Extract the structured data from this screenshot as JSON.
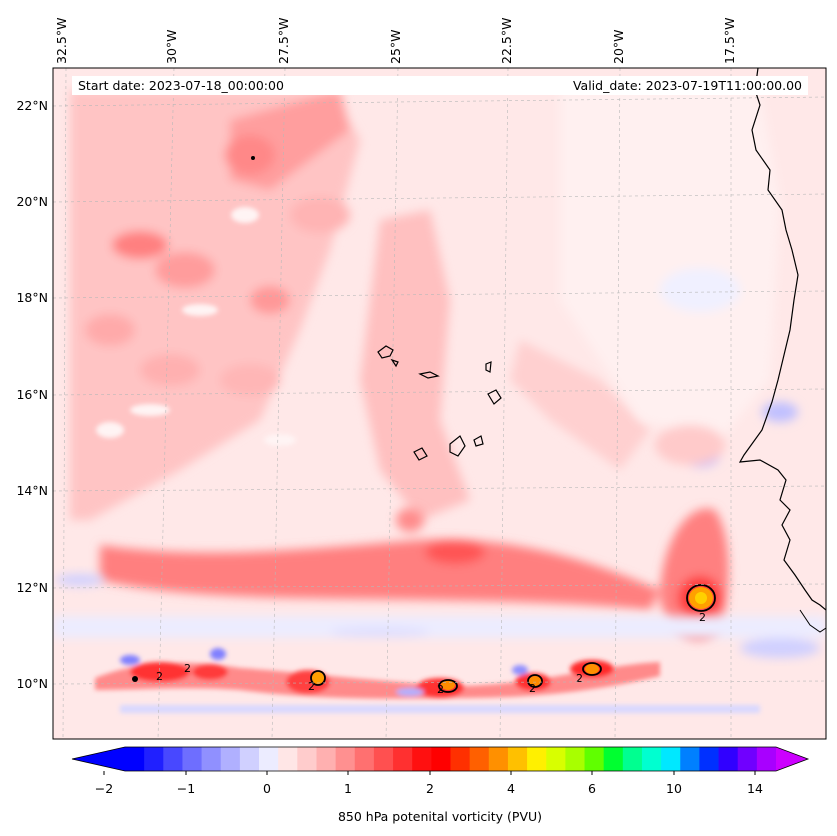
{
  "header": {
    "start_date": "Start date: 2023-07-18_00:00:00",
    "valid_date": "Valid_date: 2023-07-19T11:00:00.00"
  },
  "axes": {
    "longitude_labels": [
      "32.5°W",
      "30°W",
      "27.5°W",
      "25°W",
      "22.5°W",
      "20°W",
      "17.5°W"
    ],
    "latitude_labels": [
      "22°N",
      "20°N",
      "18°N",
      "16°N",
      "14°N",
      "12°N",
      "10°N"
    ]
  },
  "colorbar": {
    "label": "850 hPa potenital vorticity (PVU)",
    "ticks": [
      "−2",
      "−1",
      "0",
      "1",
      "2",
      "4",
      "6",
      "10",
      "14"
    ],
    "colors": [
      "#0000ff",
      "#2020ff",
      "#4848ff",
      "#6e6eff",
      "#9090ff",
      "#b0b0ff",
      "#d0d0ff",
      "#ececff",
      "#ffe6e6",
      "#ffcccc",
      "#ffb0b0",
      "#ff9090",
      "#ff7070",
      "#ff5050",
      "#ff3030",
      "#ff1010",
      "#ff0000",
      "#ff3000",
      "#ff6000",
      "#ff9000",
      "#ffc000",
      "#fff000",
      "#d8ff00",
      "#a8ff00",
      "#60ff00",
      "#00ff30",
      "#00ff90",
      "#00ffd0",
      "#00e8ff",
      "#0080ff",
      "#0030ff",
      "#3000ff",
      "#7000ff",
      "#a800ff"
    ],
    "under_color": "#0000ff",
    "over_color": "#cc00ff"
  },
  "contour_labels": [
    "2",
    "2",
    "2",
    "2",
    "2",
    "2",
    "2"
  ]
}
